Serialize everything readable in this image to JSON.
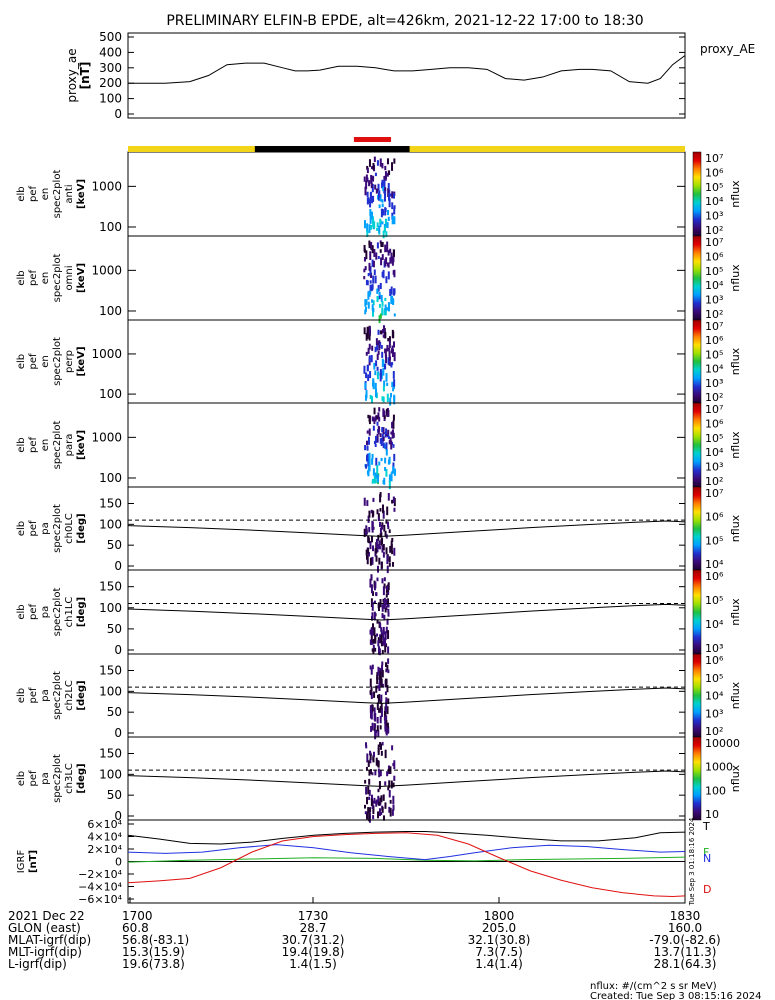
{
  "title": "PRELIMINARY ELFIN-B EPDE, alt=426km, 2021-12-22 17:00 to 18:30",
  "colors": {
    "foreground": "#000000",
    "science_bar": "#f2d418",
    "eclipse_bar": "#000000",
    "fgm_bar": "#e01010",
    "bx_line": "#000000",
    "by_line": "#2030e0",
    "bz_line": "#20b020",
    "db_line": "#e01010",
    "colorbar_stops": [
      "#200030",
      "#3a0a78",
      "#2030d0",
      "#00a0ff",
      "#00d0d0",
      "#20c040",
      "#a0e000",
      "#ffe000",
      "#ff8000",
      "#e00000",
      "#a00000"
    ]
  },
  "chart_data": [
    {
      "id": "proxy_ae",
      "type": "line",
      "ylabel": "proxy_ae\n[nT]",
      "legend": "proxy_AE",
      "ylim": [
        0,
        500
      ],
      "yticks": [
        "0",
        "100",
        "200",
        "300",
        "400",
        "500"
      ],
      "xlim": [
        0,
        90
      ],
      "x": [
        0,
        6,
        10,
        13,
        16,
        19,
        22,
        25,
        27,
        29,
        31,
        34,
        37,
        40,
        43,
        46,
        49,
        52,
        55,
        58,
        61,
        64,
        67,
        70,
        73,
        75,
        78,
        81,
        84,
        86,
        88,
        90
      ],
      "values": [
        200,
        200,
        210,
        250,
        320,
        330,
        330,
        300,
        280,
        280,
        285,
        310,
        310,
        300,
        280,
        280,
        290,
        300,
        300,
        290,
        230,
        220,
        240,
        280,
        290,
        290,
        280,
        210,
        200,
        230,
        320,
        380
      ]
    },
    {
      "id": "en_anti",
      "type": "heatmap",
      "ylabel": [
        "elb",
        "pef",
        "en",
        "spec2plot",
        "anti",
        "[keV]"
      ],
      "yscale": "log",
      "yticks": [
        "100",
        "1000"
      ],
      "colorbar_label": "nflux",
      "colorbar_ticks": [
        "10²",
        "10³",
        "10⁴",
        "10⁵",
        "10⁶",
        "10⁷"
      ],
      "active_x_range": [
        38,
        43
      ]
    },
    {
      "id": "en_omni",
      "type": "heatmap",
      "ylabel": [
        "elb",
        "pef",
        "en",
        "spec2plot",
        "omni",
        "[keV]"
      ],
      "yscale": "log",
      "yticks": [
        "100",
        "1000"
      ],
      "colorbar_label": "nflux",
      "colorbar_ticks": [
        "10²",
        "10³",
        "10⁴",
        "10⁵",
        "10⁶",
        "10⁷"
      ],
      "active_x_range": [
        38,
        43
      ]
    },
    {
      "id": "en_perp",
      "type": "heatmap",
      "ylabel": [
        "elb",
        "pef",
        "en",
        "spec2plot",
        "perp",
        "[keV]"
      ],
      "yscale": "log",
      "yticks": [
        "100",
        "1000"
      ],
      "colorbar_label": "nflux",
      "colorbar_ticks": [
        "10²",
        "10³",
        "10⁴",
        "10⁵",
        "10⁶",
        "10⁷"
      ],
      "active_x_range": [
        38,
        43
      ]
    },
    {
      "id": "en_para",
      "type": "heatmap",
      "ylabel": [
        "elb",
        "pef",
        "en",
        "spec2plot",
        "para",
        "[keV]"
      ],
      "yscale": "log",
      "yticks": [
        "100",
        "1000"
      ],
      "colorbar_label": "nflux",
      "colorbar_ticks": [
        "10²",
        "10³",
        "10⁴",
        "10⁵",
        "10⁶",
        "10⁷"
      ],
      "active_x_range": [
        38,
        43
      ]
    },
    {
      "id": "pa_ch0",
      "type": "heatmap",
      "ylabel": [
        "elb",
        "pef",
        "pa",
        "spec2plot",
        "ch0LC",
        "[deg]"
      ],
      "ylim": [
        0,
        180
      ],
      "yticks": [
        "0",
        "50",
        "100",
        "150"
      ],
      "colorbar_label": "nflux",
      "colorbar_ticks": [
        "10⁴",
        "10⁵",
        "10⁶",
        "10⁷"
      ],
      "active_x_range": [
        38,
        43
      ],
      "losscone_solid": [
        [
          0,
          97
        ],
        [
          10,
          92
        ],
        [
          20,
          86
        ],
        [
          30,
          79
        ],
        [
          38,
          73
        ],
        [
          41,
          71
        ],
        [
          45,
          74
        ],
        [
          55,
          83
        ],
        [
          65,
          92
        ],
        [
          75,
          100
        ],
        [
          82,
          105
        ],
        [
          87,
          108
        ],
        [
          90,
          106
        ]
      ],
      "losscone_dashed": 110
    },
    {
      "id": "pa_ch1",
      "type": "heatmap",
      "ylabel": [
        "elb",
        "pef",
        "pa",
        "spec2plot",
        "ch1LC",
        "[deg]"
      ],
      "ylim": [
        0,
        180
      ],
      "yticks": [
        "0",
        "50",
        "100",
        "150"
      ],
      "colorbar_label": "nflux",
      "colorbar_ticks": [
        "10³",
        "10⁴",
        "10⁵",
        "10⁶"
      ],
      "active_x_range": [
        39,
        42
      ],
      "losscone_solid": [
        [
          0,
          97
        ],
        [
          10,
          92
        ],
        [
          20,
          86
        ],
        [
          30,
          79
        ],
        [
          38,
          73
        ],
        [
          41,
          71
        ],
        [
          45,
          74
        ],
        [
          55,
          83
        ],
        [
          65,
          92
        ],
        [
          75,
          100
        ],
        [
          82,
          105
        ],
        [
          87,
          108
        ],
        [
          90,
          106
        ]
      ],
      "losscone_dashed": 110
    },
    {
      "id": "pa_ch2",
      "type": "heatmap",
      "ylabel": [
        "elb",
        "pef",
        "pa",
        "spec2plot",
        "ch2LC",
        "[deg]"
      ],
      "ylim": [
        0,
        180
      ],
      "yticks": [
        "0",
        "50",
        "100",
        "150"
      ],
      "colorbar_label": "nflux",
      "colorbar_ticks": [
        "10²",
        "10³",
        "10⁴",
        "10⁵",
        "10⁶"
      ],
      "active_x_range": [
        39,
        42
      ],
      "losscone_solid": [
        [
          0,
          97
        ],
        [
          10,
          92
        ],
        [
          20,
          86
        ],
        [
          30,
          79
        ],
        [
          38,
          73
        ],
        [
          41,
          71
        ],
        [
          45,
          74
        ],
        [
          55,
          83
        ],
        [
          65,
          92
        ],
        [
          75,
          100
        ],
        [
          82,
          105
        ],
        [
          87,
          108
        ],
        [
          90,
          106
        ]
      ],
      "losscone_dashed": 110
    },
    {
      "id": "pa_ch3",
      "type": "heatmap",
      "ylabel": [
        "elb",
        "pef",
        "pa",
        "spec2plot",
        "ch3LC",
        "[deg]"
      ],
      "ylim": [
        0,
        180
      ],
      "yticks": [
        "0",
        "50",
        "100",
        "150"
      ],
      "colorbar_label": "nflux",
      "colorbar_ticks": [
        "10",
        "100",
        "1000",
        "10000"
      ],
      "active_x_range": [
        38,
        43
      ],
      "losscone_solid": [
        [
          0,
          97
        ],
        [
          10,
          92
        ],
        [
          20,
          86
        ],
        [
          30,
          79
        ],
        [
          38,
          73
        ],
        [
          41,
          71
        ],
        [
          45,
          74
        ],
        [
          55,
          83
        ],
        [
          65,
          92
        ],
        [
          75,
          100
        ],
        [
          82,
          105
        ],
        [
          87,
          108
        ],
        [
          90,
          106
        ]
      ],
      "losscone_dashed": 110
    },
    {
      "id": "igrf",
      "type": "line",
      "ylabel": [
        "IGRF",
        "[nT]"
      ],
      "ylim": [
        -60000,
        60000
      ],
      "yticks": [
        "−6×10⁴",
        "−4×10⁴",
        "−2×10⁴",
        "0",
        "2×10⁴",
        "4×10⁴",
        "6×10⁴"
      ],
      "series": [
        {
          "name": "T",
          "x": [
            0,
            5,
            10,
            15,
            20,
            25,
            30,
            35,
            40,
            45,
            48,
            52,
            58,
            64,
            70,
            76,
            82,
            86,
            90
          ],
          "values": [
            42000,
            36000,
            29000,
            28000,
            31000,
            37000,
            42000,
            45000,
            47000,
            48000,
            48000,
            46000,
            42000,
            37000,
            33000,
            33000,
            38000,
            46000,
            47000
          ]
        },
        {
          "name": "F",
          "x": [
            0,
            10,
            20,
            30,
            40,
            48,
            56,
            64,
            72,
            80,
            90
          ],
          "values": [
            -1000,
            2000,
            4000,
            6000,
            5000,
            2000,
            1000,
            3000,
            4000,
            5000,
            7000
          ]
        },
        {
          "name": "N",
          "x": [
            0,
            6,
            12,
            18,
            24,
            30,
            36,
            42,
            48,
            52,
            56,
            62,
            68,
            74,
            80,
            86,
            90
          ],
          "values": [
            15000,
            13000,
            15000,
            22000,
            27000,
            22000,
            14000,
            8000,
            3000,
            8000,
            14000,
            22000,
            26000,
            24000,
            19000,
            15000,
            16000
          ]
        },
        {
          "name": "D",
          "x": [
            0,
            5,
            10,
            15,
            20,
            25,
            30,
            35,
            40,
            45,
            50,
            55,
            60,
            65,
            70,
            75,
            80,
            85,
            88,
            90
          ],
          "values": [
            -34000,
            -31000,
            -27000,
            -10000,
            15000,
            33000,
            40000,
            43000,
            45000,
            46000,
            42000,
            28000,
            6000,
            -15000,
            -30000,
            -42000,
            -50000,
            -55000,
            -56000,
            -55000
          ]
        }
      ]
    }
  ],
  "creation_vertical": "Tue Sep 3 01:18:16 2024",
  "xticks": [
    "1700",
    "1730",
    "1800",
    "1830"
  ],
  "ephemeris": [
    {
      "label": "2021 Dec 22",
      "values": [
        "1700",
        "1730",
        "1800",
        "1830"
      ]
    },
    {
      "label": "GLON (east)",
      "values": [
        "60.8",
        "28.7",
        "205.0",
        "160.0"
      ]
    },
    {
      "label": "MLAT-igrf(dip)",
      "values": [
        "56.8(-83.1)",
        "30.7(31.2)",
        "32.1(30.8)",
        "-79.0(-82.6)"
      ]
    },
    {
      "label": "MLT-igrf(dip)",
      "values": [
        "15.3(15.9)",
        "19.4(19.8)",
        "7.3(7.5)",
        "13.7(11.3)"
      ]
    },
    {
      "label": "L-igrf(dip)",
      "values": [
        "19.6(73.8)",
        "1.4(1.5)",
        "1.4(1.4)",
        "28.1(64.3)"
      ]
    }
  ],
  "footer": {
    "units": "nflux: #/(cm^2 s sr MeV)",
    "created": "Created: Tue Sep 3 08:15:16 2024"
  }
}
